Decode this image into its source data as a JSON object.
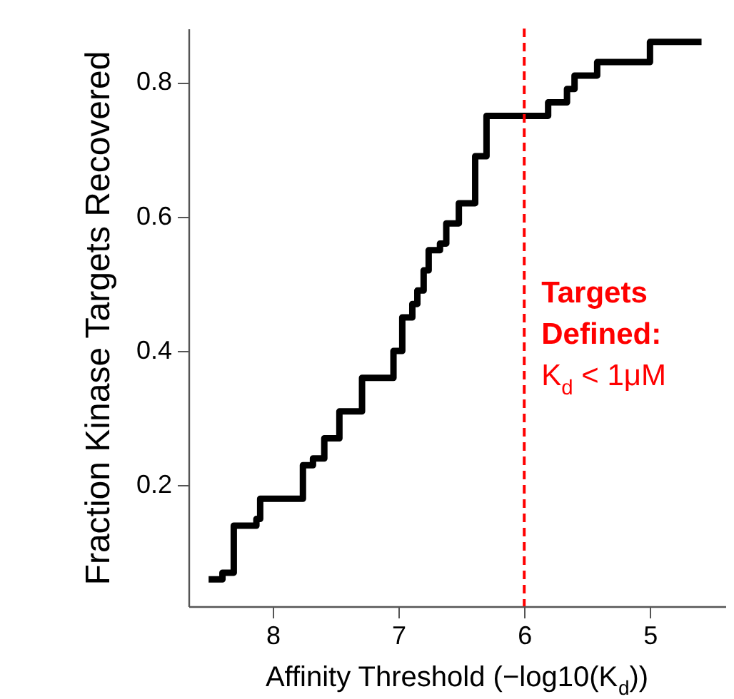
{
  "chart_data": {
    "type": "step",
    "xlabel": "Affinity Threshold (−log10(K$_{d}$))",
    "ylabel": "Fraction Kinase Targets Recovered",
    "x": [
      8.51,
      8.4,
      8.31,
      8.13,
      8.1,
      7.76,
      7.68,
      7.59,
      7.47,
      7.29,
      7.04,
      6.97,
      6.89,
      6.85,
      6.8,
      6.76,
      6.67,
      6.62,
      6.52,
      6.39,
      6.3,
      5.81,
      5.66,
      5.6,
      5.42,
      5.0,
      4.59
    ],
    "series": [
      {
        "color": "#000000",
        "values": [
          0.06,
          0.07,
          0.14,
          0.15,
          0.18,
          0.23,
          0.24,
          0.27,
          0.31,
          0.36,
          0.4,
          0.45,
          0.47,
          0.49,
          0.52,
          0.55,
          0.56,
          0.59,
          0.62,
          0.69,
          0.75,
          0.77,
          0.79,
          0.81,
          0.83,
          0.86,
          0.86
        ]
      }
    ],
    "xlim": [
      8.67,
      4.4
    ],
    "ylim": [
      0.02,
      0.88
    ],
    "xticks": [
      8,
      7,
      6,
      5
    ],
    "yticks": [
      0.2,
      0.4,
      0.6,
      0.8
    ],
    "ref_lines": [
      {
        "axis": "x",
        "value": 6,
        "label": "Targets\nDefined:\nK$_{d}$ < 1μM",
        "color": "#ff0000",
        "line_style": "dashed"
      }
    ]
  }
}
